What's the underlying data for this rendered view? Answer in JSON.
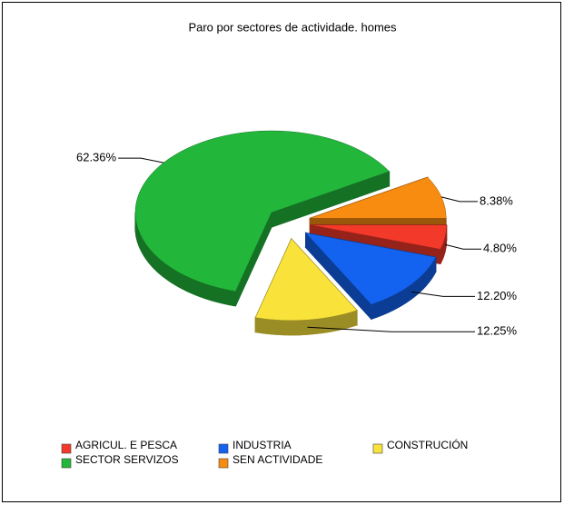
{
  "chart_data": {
    "type": "pie",
    "title": "Paro por sectores de actividade. homes",
    "categories": [
      "AGRICUL. E PESCA",
      "INDUSTRIA",
      "CONSTRUCIÓN",
      "SECTOR SERVIZOS",
      "SEN ACTIVIDADE"
    ],
    "values": [
      4.8,
      12.2,
      12.25,
      62.36,
      8.38
    ],
    "value_labels": [
      "4.80%",
      "12.20%",
      "12.25%",
      "62.36%",
      "8.38%"
    ],
    "colors": [
      "#f2392a",
      "#1463f0",
      "#f9e33b",
      "#22b63a",
      "#f88c10"
    ],
    "legend": "bottom"
  }
}
